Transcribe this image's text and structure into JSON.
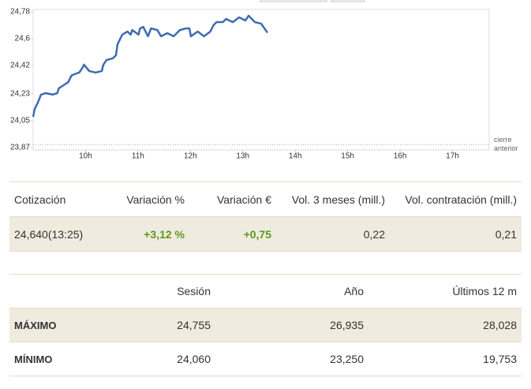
{
  "chart_data": {
    "type": "line",
    "x": [
      9.0,
      9.03,
      9.09,
      9.15,
      9.24,
      9.37,
      9.46,
      9.49,
      9.58,
      9.67,
      9.73,
      9.79,
      9.88,
      9.94,
      9.97,
      10.07,
      10.19,
      10.31,
      10.34,
      10.4,
      10.52,
      10.58,
      10.61,
      10.64,
      10.7,
      10.8,
      10.86,
      10.89,
      11.01,
      11.04,
      11.1,
      11.19,
      11.25,
      11.37,
      11.44,
      11.56,
      11.68,
      11.8,
      11.92,
      11.98,
      12.01,
      12.14,
      12.26,
      12.38,
      12.44,
      12.5,
      12.62,
      12.68,
      12.81,
      12.93,
      13.05,
      13.11,
      13.23,
      13.35,
      13.47
    ],
    "series": [
      {
        "color": "#3d6bb3",
        "values": [
          24.076,
          24.129,
          24.172,
          24.225,
          24.235,
          24.225,
          24.235,
          24.267,
          24.288,
          24.309,
          24.352,
          24.362,
          24.373,
          24.404,
          24.426,
          24.383,
          24.373,
          24.383,
          24.426,
          24.457,
          24.468,
          24.489,
          24.563,
          24.584,
          24.627,
          24.648,
          24.627,
          24.658,
          24.627,
          24.669,
          24.679,
          24.616,
          24.669,
          24.658,
          24.616,
          24.637,
          24.616,
          24.658,
          24.669,
          24.669,
          24.616,
          24.648,
          24.616,
          24.648,
          24.69,
          24.711,
          24.711,
          24.732,
          24.711,
          24.743,
          24.722,
          24.754,
          24.711,
          24.701,
          24.64
        ]
      }
    ],
    "xlim": [
      9,
      17.7
    ],
    "xticks": [
      {
        "value": 10,
        "label": "10h"
      },
      {
        "value": 11,
        "label": "11h"
      },
      {
        "value": 12,
        "label": "12h"
      },
      {
        "value": 13,
        "label": "13h"
      },
      {
        "value": 14,
        "label": "14h"
      },
      {
        "value": 15,
        "label": "15h"
      },
      {
        "value": 16,
        "label": "16h"
      },
      {
        "value": 17,
        "label": "17h"
      }
    ],
    "ylim": [
      23.87,
      24.78
    ],
    "yticks": [
      {
        "value": 23.87,
        "label": "23,87"
      },
      {
        "value": 24.05,
        "label": "24,05"
      },
      {
        "value": 24.23,
        "label": "24,23"
      },
      {
        "value": 24.42,
        "label": "24,42"
      },
      {
        "value": 24.6,
        "label": "24,6"
      },
      {
        "value": 24.78,
        "label": "24,78"
      }
    ],
    "previous_close": {
      "value": 23.89,
      "label": "cierre anterior"
    }
  },
  "quote_table": {
    "headers": [
      "Cotización",
      "Variación %",
      "Variación €",
      "Vol. 3 meses (mill.)",
      "Vol. contratación (mill.)"
    ],
    "row": [
      "24,640(13:25)",
      "+3,12 %",
      "+0,75",
      "0,22",
      "0,21"
    ]
  },
  "range_table": {
    "headers": [
      "Sesión",
      "Año",
      "Últimos 12 m"
    ],
    "rows": [
      [
        "MÁXIMO",
        "24,755",
        "26,935",
        "28,028"
      ],
      [
        "MÍNIMO",
        "24,060",
        "23,250",
        "19,753"
      ]
    ]
  }
}
